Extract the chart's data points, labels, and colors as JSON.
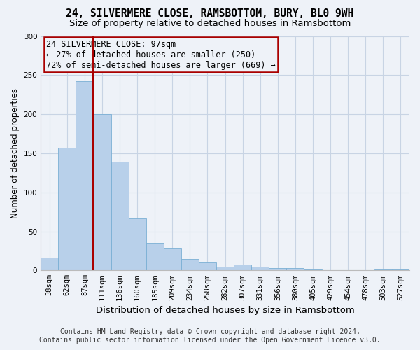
{
  "title1": "24, SILVERMERE CLOSE, RAMSBOTTOM, BURY, BL0 9WH",
  "title2": "Size of property relative to detached houses in Ramsbottom",
  "xlabel": "Distribution of detached houses by size in Ramsbottom",
  "ylabel": "Number of detached properties",
  "categories": [
    "38sqm",
    "62sqm",
    "87sqm",
    "111sqm",
    "136sqm",
    "160sqm",
    "185sqm",
    "209sqm",
    "234sqm",
    "258sqm",
    "282sqm",
    "307sqm",
    "331sqm",
    "356sqm",
    "380sqm",
    "405sqm",
    "429sqm",
    "454sqm",
    "478sqm",
    "503sqm",
    "527sqm"
  ],
  "values": [
    16,
    157,
    242,
    200,
    139,
    67,
    35,
    28,
    15,
    10,
    5,
    7,
    5,
    3,
    3,
    1,
    0,
    0,
    0,
    1,
    1
  ],
  "bar_color": "#b8d0ea",
  "bar_edge_color": "#7aafd4",
  "grid_color": "#c8d4e4",
  "background_color": "#eef2f8",
  "vline_x": 2.5,
  "annotation_text": "24 SILVERMERE CLOSE: 97sqm\n← 27% of detached houses are smaller (250)\n72% of semi-detached houses are larger (669) →",
  "vline_color": "#aa0000",
  "box_edge_color": "#aa0000",
  "ylim": [
    0,
    300
  ],
  "yticks": [
    0,
    50,
    100,
    150,
    200,
    250,
    300
  ],
  "footer1": "Contains HM Land Registry data © Crown copyright and database right 2024.",
  "footer2": "Contains public sector information licensed under the Open Government Licence v3.0.",
  "title1_fontsize": 10.5,
  "title2_fontsize": 9.5,
  "xlabel_fontsize": 9.5,
  "ylabel_fontsize": 8.5,
  "tick_fontsize": 7.5,
  "annotation_fontsize": 8.5,
  "footer_fontsize": 7
}
